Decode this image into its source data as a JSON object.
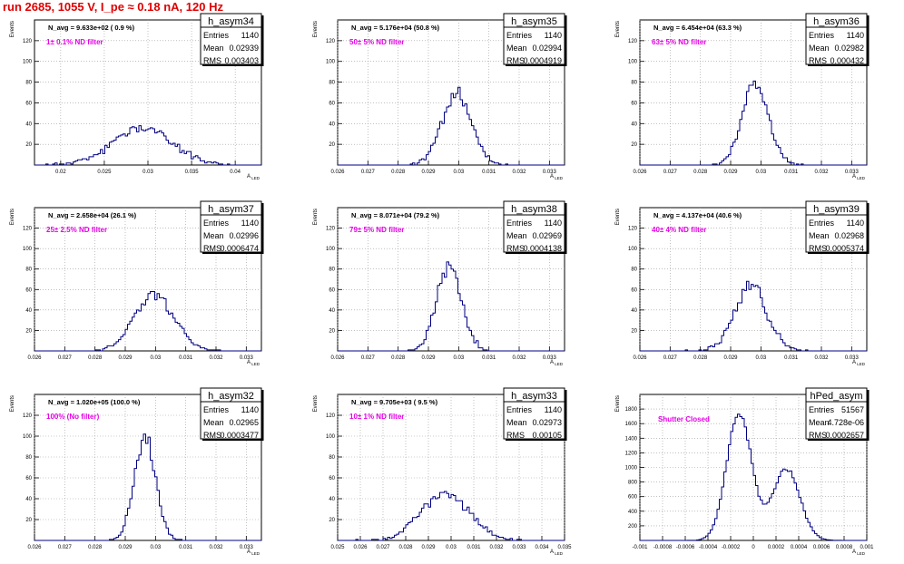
{
  "title": "run 2685,  1055 V, I_pe ≈ 0.18 nA, 120 Hz",
  "panel_common": {
    "ylabel": "Events",
    "xlabel": "A_LED",
    "stats_labels": [
      "Entries",
      "Mean",
      "RMS"
    ]
  },
  "chart_data": [
    {
      "type": "bar",
      "title": "h_asym34",
      "navg": "N_avg = 9.633e+02 ( 0.9 %)",
      "filter": "1± 0.1% ND filter",
      "stats": {
        "entries": "1140",
        "mean": "0.02939",
        "rms": "0.003403"
      },
      "xlim": [
        0.017,
        0.043
      ],
      "ylim": [
        0,
        140
      ],
      "xticks": [
        0.02,
        0.025,
        0.03,
        0.035,
        0.04
      ],
      "xtick_labels": [
        "0.02",
        "0.025",
        "0.03",
        "0.035",
        "0.04"
      ],
      "yticks": [
        20,
        40,
        60,
        80,
        100,
        120
      ],
      "mean": 0.02939,
      "sigma": 0.003403,
      "peak": 36,
      "seed": 11,
      "x": [
        0.0165,
        0.0177,
        0.0189,
        0.0201,
        0.0213,
        0.0225,
        0.0237,
        0.0249,
        0.0261,
        0.0273,
        0.0285,
        0.0297,
        0.0309,
        0.0321,
        0.0333,
        0.0345,
        0.0357,
        0.0369,
        0.0381,
        0.0393
      ],
      "values": [
        0,
        1,
        2,
        4,
        6,
        10,
        16,
        22,
        30,
        35,
        36,
        34,
        29,
        22,
        16,
        10,
        6,
        3,
        1,
        0
      ]
    },
    {
      "type": "bar",
      "title": "h_asym35",
      "navg": "N_avg = 5.176e+04 (50.8 %)",
      "filter": "50± 5% ND filter",
      "stats": {
        "entries": "1140",
        "mean": "0.02994",
        "rms": "0.0004919"
      },
      "xlim": [
        0.026,
        0.0335
      ],
      "ylim": [
        0,
        140
      ],
      "xticks": [
        0.026,
        0.027,
        0.028,
        0.029,
        0.03,
        0.031,
        0.032,
        0.033
      ],
      "xtick_labels": [
        "0.026",
        "0.027",
        "0.028",
        "0.029",
        "0.03",
        "0.031",
        "0.032",
        "0.033"
      ],
      "yticks": [
        20,
        40,
        60,
        80,
        100,
        120
      ],
      "mean": 0.02994,
      "sigma": 0.0004919,
      "peak": 68,
      "seed": 23,
      "x": [
        0.0285,
        0.0287,
        0.0289,
        0.0291,
        0.0293,
        0.0295,
        0.0297,
        0.0299,
        0.0301,
        0.0303,
        0.0305,
        0.0307,
        0.0309,
        0.0311,
        0.0313,
        0.0315
      ],
      "values": [
        1,
        3,
        7,
        14,
        25,
        40,
        55,
        66,
        68,
        62,
        50,
        36,
        22,
        12,
        5,
        2
      ]
    },
    {
      "type": "bar",
      "title": "h_asym36",
      "navg": "N_avg = 6.454e+04 (63.3 %)",
      "filter": "63± 5% ND filter",
      "stats": {
        "entries": "1140",
        "mean": "0.02982",
        "rms": "0.000432"
      },
      "xlim": [
        0.026,
        0.0335
      ],
      "ylim": [
        0,
        140
      ],
      "xticks": [
        0.026,
        0.027,
        0.028,
        0.029,
        0.03,
        0.031,
        0.032,
        0.033
      ],
      "xtick_labels": [
        "0.026",
        "0.027",
        "0.028",
        "0.029",
        "0.03",
        "0.031",
        "0.032",
        "0.033"
      ],
      "yticks": [
        20,
        40,
        60,
        80,
        100,
        120
      ],
      "mean": 0.02982,
      "sigma": 0.000432,
      "peak": 80,
      "seed": 37,
      "x": [
        0.0286,
        0.0288,
        0.029,
        0.0292,
        0.0294,
        0.0296,
        0.0298,
        0.03,
        0.0302,
        0.0304,
        0.0306,
        0.0308,
        0.031,
        0.0312
      ],
      "values": [
        1,
        4,
        11,
        24,
        45,
        67,
        80,
        76,
        60,
        40,
        22,
        10,
        4,
        1
      ]
    },
    {
      "type": "bar",
      "title": "h_asym37",
      "navg": "N_avg = 2.658e+04 (26.1 %)",
      "filter": "25± 2.5% ND filter",
      "stats": {
        "entries": "1140",
        "mean": "0.02996",
        "rms": "0.0006474"
      },
      "xlim": [
        0.026,
        0.0335
      ],
      "ylim": [
        0,
        140
      ],
      "xticks": [
        0.026,
        0.027,
        0.028,
        0.029,
        0.03,
        0.031,
        0.032,
        0.033
      ],
      "xtick_labels": [
        "0.026",
        "0.027",
        "0.028",
        "0.029",
        "0.03",
        "0.031",
        "0.032",
        "0.033"
      ],
      "yticks": [
        20,
        40,
        60,
        80,
        100,
        120
      ],
      "mean": 0.02996,
      "sigma": 0.0006474,
      "peak": 55,
      "seed": 41,
      "x": [
        0.0281,
        0.0284,
        0.0287,
        0.029,
        0.0293,
        0.0296,
        0.0299,
        0.0302,
        0.0305,
        0.0308,
        0.0311,
        0.0314,
        0.0317
      ],
      "values": [
        1,
        4,
        10,
        20,
        33,
        46,
        55,
        52,
        42,
        29,
        17,
        8,
        3
      ]
    },
    {
      "type": "bar",
      "title": "h_asym38",
      "navg": "N_avg = 8.071e+04 (79.2 %)",
      "filter": "79± 5% ND filter",
      "stats": {
        "entries": "1140",
        "mean": "0.02969",
        "rms": "0.0004138"
      },
      "xlim": [
        0.026,
        0.0335
      ],
      "ylim": [
        0,
        140
      ],
      "xticks": [
        0.026,
        0.027,
        0.028,
        0.029,
        0.03,
        0.031,
        0.032,
        0.033
      ],
      "xtick_labels": [
        "0.026",
        "0.027",
        "0.028",
        "0.029",
        "0.03",
        "0.031",
        "0.032",
        "0.033"
      ],
      "yticks": [
        20,
        40,
        60,
        80,
        100,
        120
      ],
      "mean": 0.02969,
      "sigma": 0.0004138,
      "peak": 82,
      "seed": 53,
      "x": [
        0.0284,
        0.0286,
        0.0288,
        0.029,
        0.0292,
        0.0294,
        0.0296,
        0.0298,
        0.03,
        0.0302,
        0.0304,
        0.0306,
        0.0308,
        0.031
      ],
      "values": [
        1,
        4,
        11,
        25,
        47,
        70,
        82,
        78,
        60,
        38,
        20,
        9,
        3,
        1
      ]
    },
    {
      "type": "bar",
      "title": "h_asym39",
      "navg": "N_avg = 4.137e+04 (40.6 %)",
      "filter": "40± 4% ND filter",
      "stats": {
        "entries": "1140",
        "mean": "0.02968",
        "rms": "0.0005374"
      },
      "xlim": [
        0.026,
        0.0335
      ],
      "ylim": [
        0,
        140
      ],
      "xticks": [
        0.026,
        0.027,
        0.028,
        0.029,
        0.03,
        0.031,
        0.032,
        0.033
      ],
      "xtick_labels": [
        "0.026",
        "0.027",
        "0.028",
        "0.029",
        "0.03",
        "0.031",
        "0.032",
        "0.033"
      ],
      "yticks": [
        20,
        40,
        60,
        80,
        100,
        120
      ],
      "mean": 0.02968,
      "sigma": 0.0005374,
      "peak": 64,
      "seed": 67,
      "x": [
        0.0282,
        0.0285,
        0.0288,
        0.0291,
        0.0294,
        0.0297,
        0.03,
        0.0303,
        0.0306,
        0.0309,
        0.0312,
        0.0315
      ],
      "values": [
        1,
        4,
        12,
        27,
        46,
        62,
        64,
        50,
        31,
        15,
        5,
        1
      ]
    },
    {
      "type": "bar",
      "title": "h_asym32",
      "navg": "N_avg = 1.020e+05 (100.0 %)",
      "filter": "100% (No filter)",
      "stats": {
        "entries": "1140",
        "mean": "0.02965",
        "rms": "0.0003477"
      },
      "xlim": [
        0.026,
        0.0335
      ],
      "ylim": [
        0,
        140
      ],
      "xticks": [
        0.026,
        0.027,
        0.028,
        0.029,
        0.03,
        0.031,
        0.032,
        0.033
      ],
      "xtick_labels": [
        "0.026",
        "0.027",
        "0.028",
        "0.029",
        "0.03",
        "0.031",
        "0.032",
        "0.033"
      ],
      "yticks": [
        20,
        40,
        60,
        80,
        100,
        120
      ],
      "mean": 0.02965,
      "sigma": 0.0003477,
      "peak": 100,
      "seed": 71,
      "x": [
        0.0286,
        0.0288,
        0.029,
        0.0292,
        0.0294,
        0.0296,
        0.0298,
        0.03,
        0.0302,
        0.0304,
        0.0306,
        0.0308
      ],
      "values": [
        2,
        8,
        24,
        52,
        84,
        100,
        90,
        62,
        32,
        12,
        4,
        1
      ]
    },
    {
      "type": "bar",
      "title": "h_asym33",
      "navg": "N_avg = 9.705e+03 ( 9.5 %)",
      "filter": "10± 1% ND filter",
      "stats": {
        "entries": "1140",
        "mean": "0.02973",
        "rms": "0.00105"
      },
      "xlim": [
        0.025,
        0.035
      ],
      "ylim": [
        0,
        140
      ],
      "xticks": [
        0.025,
        0.026,
        0.027,
        0.028,
        0.029,
        0.03,
        0.031,
        0.032,
        0.033,
        0.034,
        0.035
      ],
      "xtick_labels": [
        "0.025",
        "0.026",
        "0.027",
        "0.028",
        "0.029",
        "0.03",
        "0.031",
        "0.032",
        "0.033",
        "0.034",
        "0.035"
      ],
      "yticks": [
        20,
        40,
        60,
        80,
        100,
        120
      ],
      "mean": 0.02973,
      "sigma": 0.00105,
      "peak": 46,
      "seed": 83,
      "x": [
        0.0265,
        0.027,
        0.0275,
        0.028,
        0.0285,
        0.029,
        0.0295,
        0.03,
        0.0305,
        0.031,
        0.0315,
        0.032,
        0.0325,
        0.033
      ],
      "values": [
        1,
        2,
        5,
        11,
        21,
        33,
        43,
        46,
        42,
        32,
        20,
        11,
        5,
        2
      ]
    },
    {
      "type": "bar",
      "title": "hPed_asym",
      "navg": "",
      "filter": "Shutter Closed",
      "stats": {
        "entries": "51567",
        "mean": "4.728e-06",
        "rms": "0.0002657"
      },
      "xlim": [
        -0.001,
        0.001
      ],
      "ylim": [
        0,
        2000
      ],
      "xticks": [
        -0.001,
        -0.0008,
        -0.0006,
        -0.0004,
        -0.0002,
        0,
        0.0002,
        0.0004,
        0.0006,
        0.0008,
        0.001
      ],
      "xtick_labels": [
        "-0.001",
        "-0.0008",
        "-0.0006",
        "-0.0004",
        "-0.0002",
        "0",
        "0.0002",
        "0.0004",
        "0.0006",
        "0.0008",
        "0.001"
      ],
      "yticks": [
        200,
        400,
        600,
        800,
        1000,
        1200,
        1400,
        1600,
        1800
      ],
      "bimodal": [
        {
          "mean": -0.000125,
          "sigma": 0.00011,
          "peak": 1750
        },
        {
          "mean": 0.00029,
          "sigma": 0.00012,
          "peak": 980
        }
      ],
      "seed": 97,
      "x": [
        -0.00055,
        -0.00045,
        -0.00035,
        -0.00025,
        -0.00015,
        -0.0001,
        -5e-05,
        0.0,
        5e-05,
        0.0001,
        0.00015,
        0.0002,
        0.00025,
        0.0003,
        0.00035,
        0.0004,
        0.00045,
        0.0005,
        0.0006
      ],
      "values": [
        100,
        250,
        500,
        1000,
        1600,
        1800,
        1500,
        900,
        700,
        800,
        900,
        1000,
        1050,
        1000,
        900,
        650,
        400,
        200,
        30
      ]
    }
  ]
}
